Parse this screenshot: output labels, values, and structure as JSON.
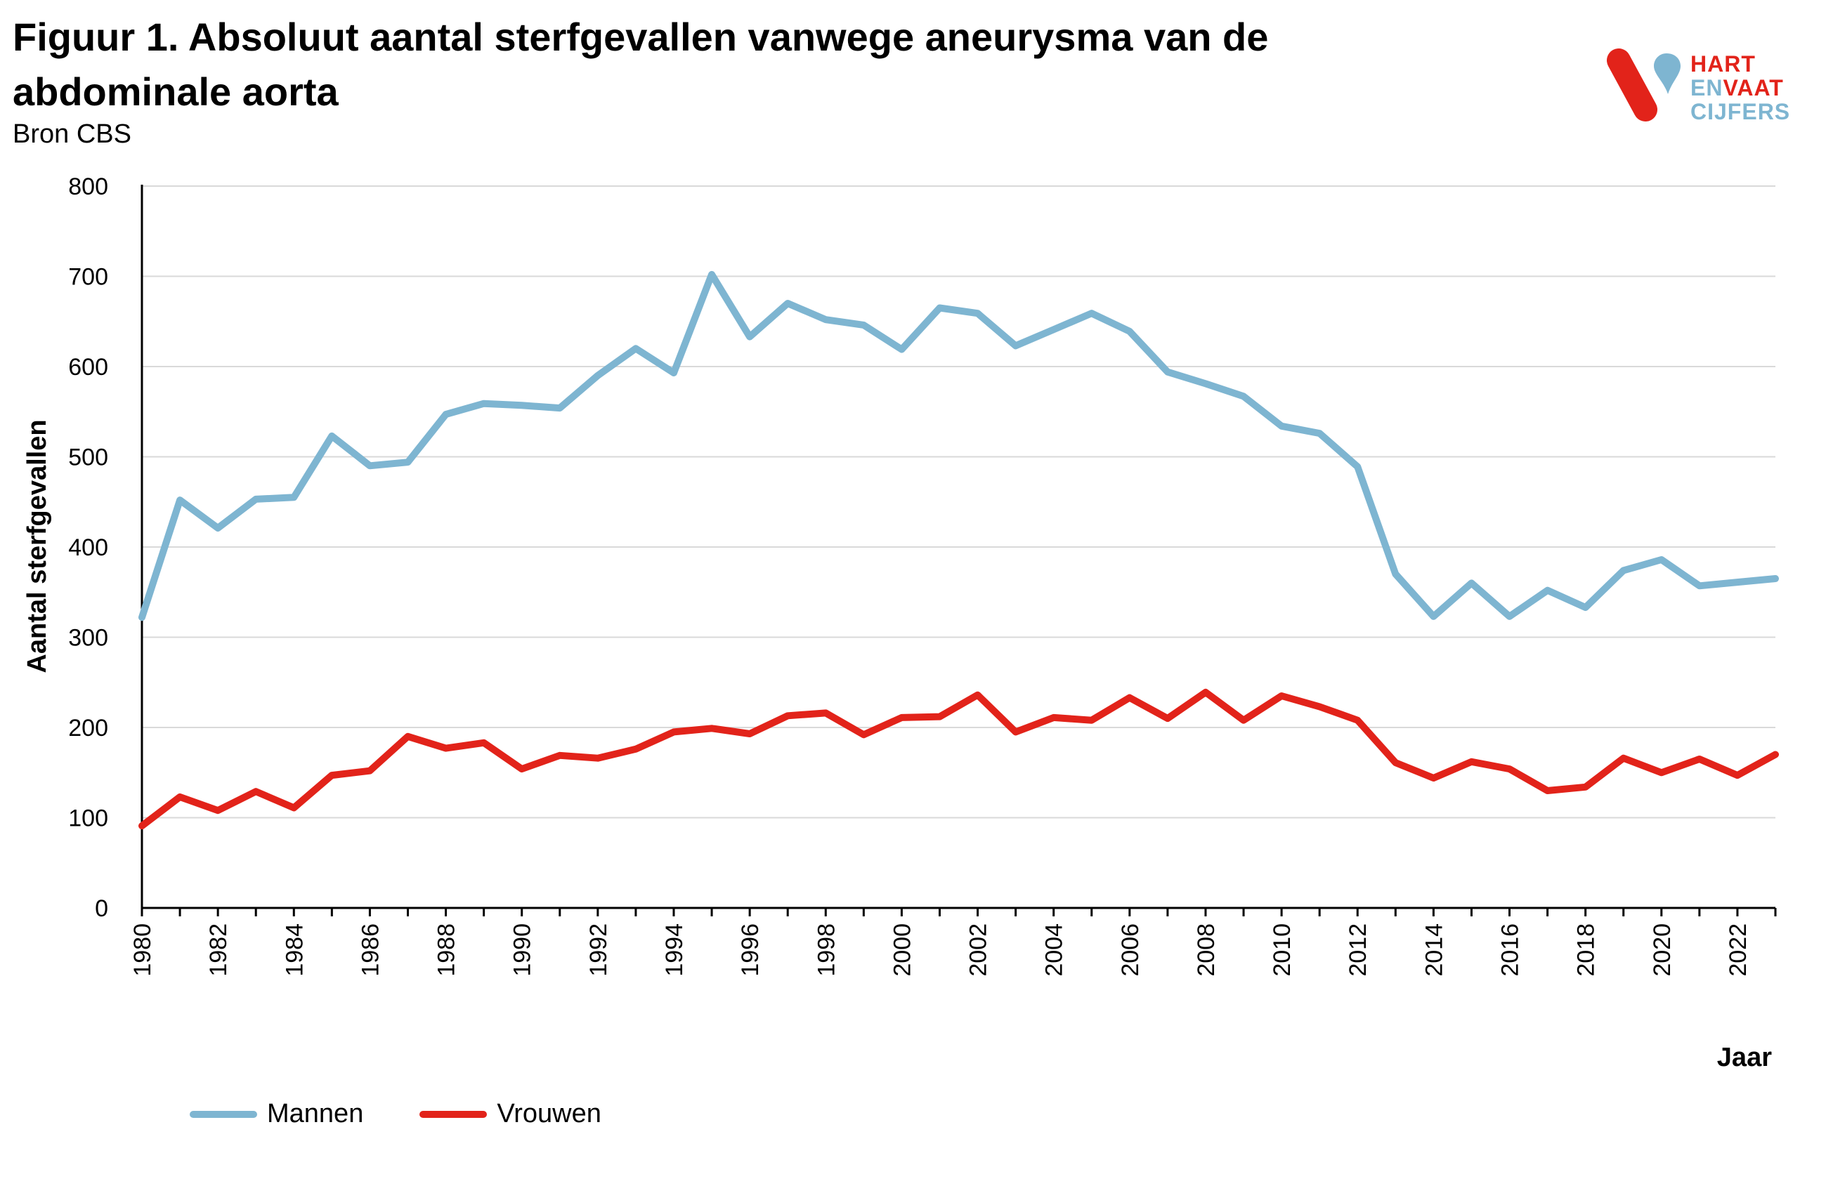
{
  "figure": {
    "title": "Figuur 1. Absoluut aantal sterfgevallen vanwege aneurysma van de abdominale aorta",
    "source": "Bron CBS"
  },
  "logo": {
    "line1": "HART",
    "line2a": "EN",
    "line2b": "VAAT",
    "line3": "CIJFERS",
    "colors": {
      "red": "#e2231a",
      "blue": "#7eb5d1"
    }
  },
  "chart_data": {
    "type": "line",
    "title": "Figuur 1. Absoluut aantal sterfgevallen vanwege aneurysma van de abdominale aorta",
    "xlabel": "Jaar",
    "ylabel": "Aantal sterfgevallen",
    "ylim": [
      0,
      800
    ],
    "yticks": [
      "0",
      "100",
      "200",
      "300",
      "400",
      "500",
      "600",
      "700",
      "800"
    ],
    "xlim": [
      1980,
      2023
    ],
    "xticks": [
      "1980",
      "1982",
      "1984",
      "1986",
      "1988",
      "1990",
      "1992",
      "1994",
      "1996",
      "1998",
      "2000",
      "2002",
      "2004",
      "2006",
      "2008",
      "2010",
      "2012",
      "2014",
      "2016",
      "2018",
      "2020",
      "2022"
    ],
    "grid": true,
    "legend": "bottom-left",
    "x": [
      1980,
      1981,
      1982,
      1983,
      1984,
      1985,
      1986,
      1987,
      1988,
      1989,
      1990,
      1991,
      1992,
      1993,
      1994,
      1995,
      1996,
      1997,
      1998,
      1999,
      2000,
      2001,
      2002,
      2003,
      2004,
      2005,
      2006,
      2007,
      2008,
      2009,
      2010,
      2011,
      2012,
      2013,
      2014,
      2015,
      2016,
      2017,
      2018,
      2019,
      2020,
      2021,
      2022,
      2023
    ],
    "series": [
      {
        "name": "Mannen",
        "color": "#7eb5d1",
        "values": [
          322,
          452,
          421,
          453,
          455,
          523,
          490,
          494,
          547,
          559,
          557,
          554,
          590,
          620,
          593,
          702,
          633,
          670,
          652,
          646,
          619,
          665,
          659,
          623,
          641,
          659,
          639,
          594,
          581,
          567,
          534,
          526,
          489,
          370,
          323,
          360,
          323,
          352,
          333,
          374,
          386,
          357,
          361,
          365
        ]
      },
      {
        "name": "Vrouwen",
        "color": "#e2231a",
        "values": [
          91,
          123,
          108,
          129,
          111,
          147,
          152,
          190,
          177,
          183,
          154,
          169,
          166,
          176,
          195,
          199,
          193,
          213,
          216,
          192,
          211,
          212,
          236,
          195,
          211,
          208,
          233,
          210,
          239,
          208,
          235,
          223,
          208,
          161,
          144,
          162,
          154,
          130,
          134,
          166,
          150,
          165,
          147,
          170
        ]
      }
    ]
  }
}
